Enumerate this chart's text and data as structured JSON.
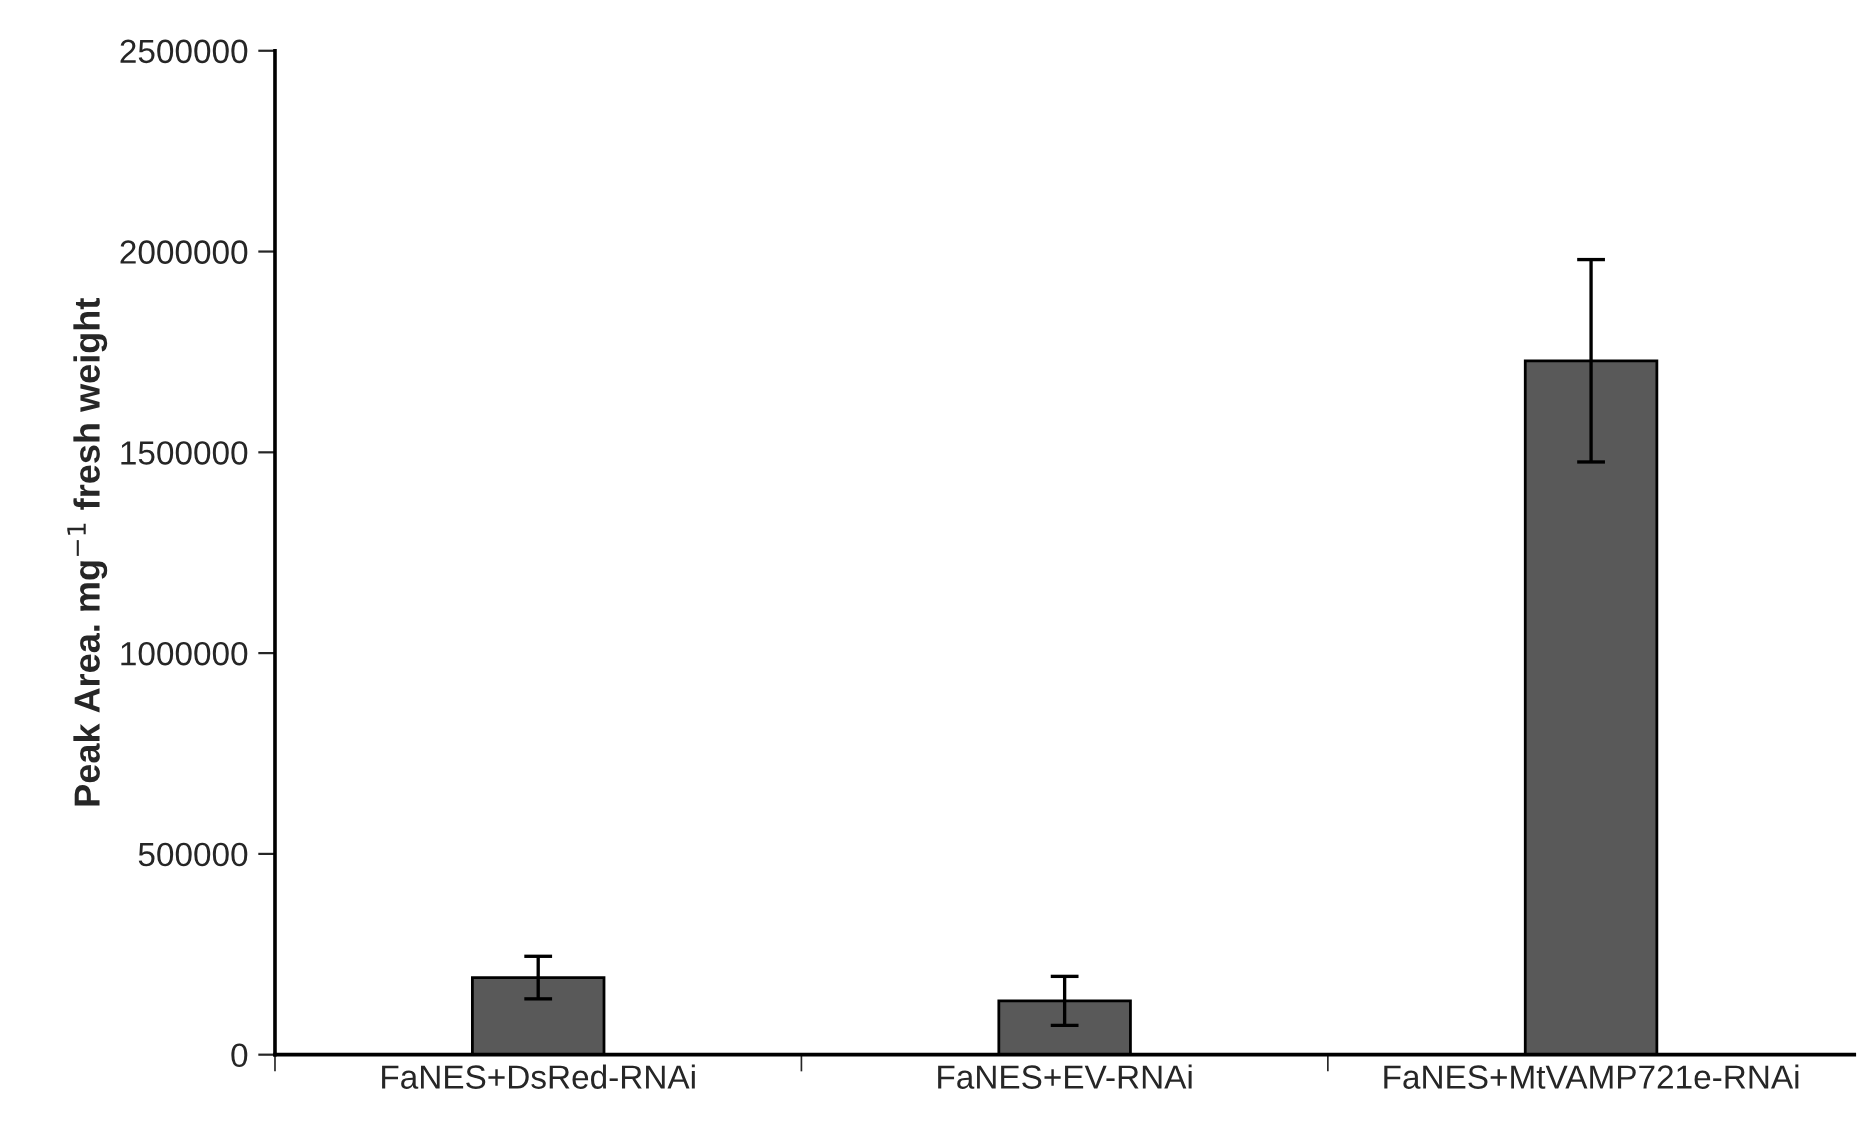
{
  "chart_data": {
    "type": "bar",
    "ylabel": "Peak Area. mg$^{−1}$ fresh weight",
    "categories": [
      "FaNES+DsRed-RNAi",
      "FaNES+EV-RNAi",
      "FaNES+MtVAMP721e-RNAi"
    ],
    "values": [
      192000,
      134000,
      1728000
    ],
    "errors": [
      53000,
      61000,
      252000
    ],
    "color": "#595959",
    "ylim": [
      0,
      2500000
    ],
    "yticks": [
      0,
      500000,
      1000000,
      1500000,
      2000000,
      2500000
    ],
    "grid": false
  }
}
